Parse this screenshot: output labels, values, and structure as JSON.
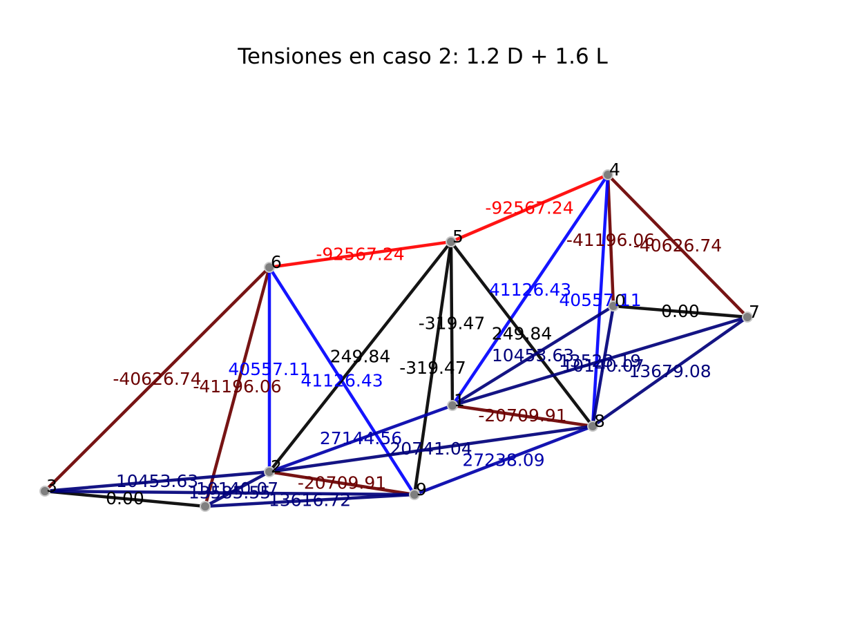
{
  "title": "Tensiones en caso 2: 1.2 D + 1.6 L",
  "colors": {
    "compression_strong": "#ff0000",
    "compression_mid": "#6b0000",
    "tension_strong": "#0000ff",
    "tension_mid": "#00007a",
    "neutral": "#000000",
    "node_fill": "#7f7f7f"
  },
  "nodes": [
    {
      "id": "1",
      "label": "1"
    },
    {
      "id": "2",
      "label": "2"
    },
    {
      "id": "3",
      "label": "3"
    },
    {
      "id": "4",
      "label": "4"
    },
    {
      "id": "5",
      "label": "5"
    },
    {
      "id": "6",
      "label": "6"
    },
    {
      "id": "7",
      "label": "7"
    },
    {
      "id": "8",
      "label": "8"
    },
    {
      "id": "9",
      "label": "9"
    },
    {
      "id": "0",
      "label": "0"
    },
    {
      "id": "10",
      "label": ""
    }
  ],
  "members": [
    {
      "from": "6",
      "to": "5",
      "label": "-92567.24",
      "color": "#ff0000"
    },
    {
      "from": "5",
      "to": "4",
      "label": "-92567.24",
      "color": "#ff0000"
    },
    {
      "from": "3",
      "to": "6",
      "label": "-40626.74",
      "color": "#6b0000"
    },
    {
      "from": "4",
      "to": "7",
      "label": "-40626.74",
      "color": "#6b0000"
    },
    {
      "from": "10",
      "to": "6",
      "label": "-41196.06",
      "color": "#6b0000"
    },
    {
      "from": "4",
      "to": "0",
      "label": "-41196.06",
      "color": "#6b0000"
    },
    {
      "from": "6",
      "to": "2",
      "label": "40557.11",
      "color": "#0000ff"
    },
    {
      "from": "4",
      "to": "8",
      "label": "40557.11",
      "color": "#0000ff"
    },
    {
      "from": "6",
      "to": "9",
      "label": "41126.43",
      "color": "#0000ff"
    },
    {
      "from": "4",
      "to": "1",
      "label": "41126.43",
      "color": "#0000ff"
    },
    {
      "from": "5",
      "to": "2",
      "label": "249.84",
      "color": "#000000"
    },
    {
      "from": "5",
      "to": "8",
      "label": "249.84",
      "color": "#000000"
    },
    {
      "from": "5",
      "to": "1",
      "label": "-319.47",
      "color": "#000000"
    },
    {
      "from": "5",
      "to": "9",
      "label": "-319.47",
      "color": "#000000"
    },
    {
      "from": "3",
      "to": "10",
      "label": "0.00",
      "color": "#000000"
    },
    {
      "from": "0",
      "to": "7",
      "label": "0.00",
      "color": "#000000"
    },
    {
      "from": "1",
      "to": "8",
      "label": "-20709.91",
      "color": "#6b0000"
    },
    {
      "from": "2",
      "to": "9",
      "label": "-20709.91",
      "color": "#6b0000"
    },
    {
      "from": "2",
      "to": "1",
      "label": "27144.56",
      "color": "#0000aa"
    },
    {
      "from": "9",
      "to": "8",
      "label": "27238.09",
      "color": "#0000aa"
    },
    {
      "from": "2",
      "to": "8",
      "label": "20741.04",
      "color": "#00007a"
    },
    {
      "from": "3",
      "to": "9",
      "label": "13585.55",
      "color": "#00007a"
    },
    {
      "from": "1",
      "to": "7",
      "label": "13523.19",
      "color": "#00007a"
    },
    {
      "from": "8",
      "to": "7",
      "label": "13679.08",
      "color": "#00007a"
    },
    {
      "from": "10",
      "to": "9",
      "label": "13616.72",
      "color": "#00007a"
    },
    {
      "from": "3",
      "to": "2",
      "label": "10453.63",
      "color": "#00007a"
    },
    {
      "from": "1",
      "to": "0",
      "label": "10453.63",
      "color": "#00007a"
    },
    {
      "from": "10",
      "to": "2",
      "label": "10140.07",
      "color": "#00007a"
    },
    {
      "from": "8",
      "to": "0",
      "label": "10140.07",
      "color": "#00007a"
    }
  ]
}
